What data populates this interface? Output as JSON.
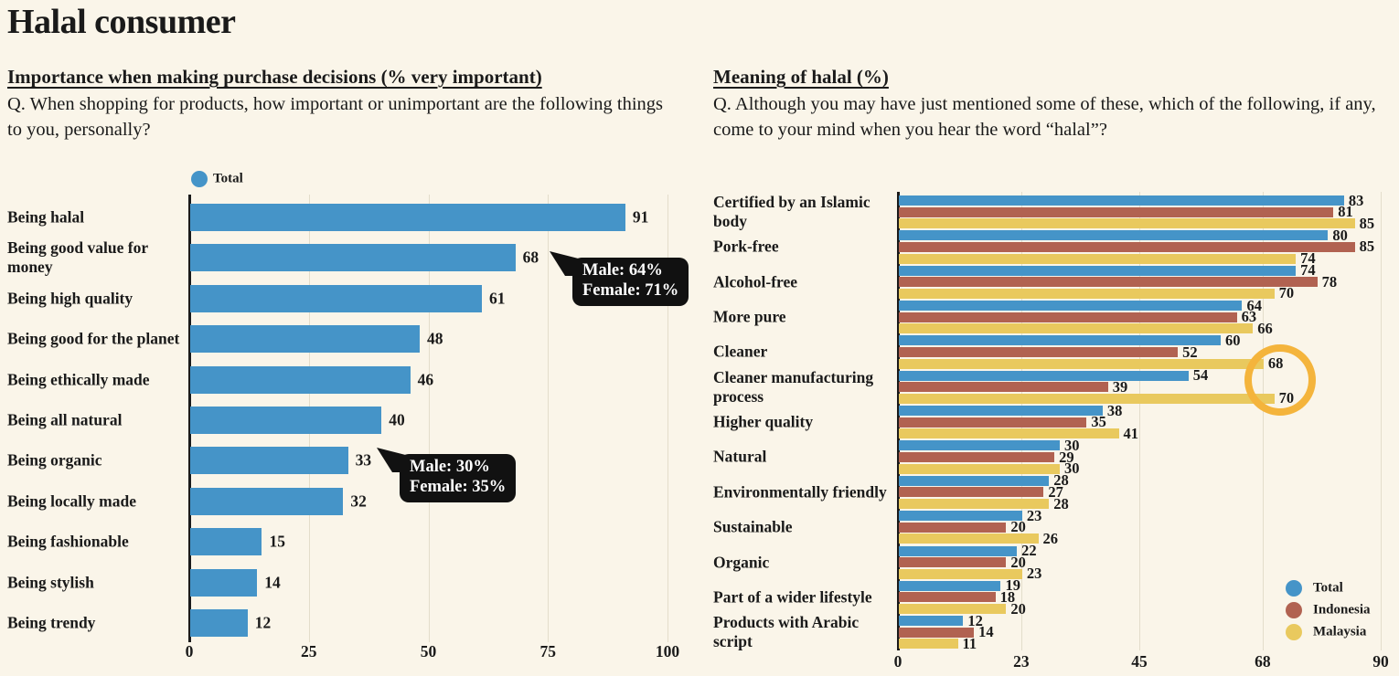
{
  "page": {
    "title": "Halal consumer"
  },
  "colors": {
    "background": "#faf5e9",
    "text": "#1a1a1a",
    "total_blue": "#4594c8",
    "indonesia_red": "#b16251",
    "malaysia_yellow": "#e9c95e",
    "gridline": "#e3ddcb",
    "axis": "#1a1a1a",
    "callout_bg": "#111111",
    "callout_text": "#ffffff",
    "highlight_circle": "#f4b43c"
  },
  "chart_data": [
    {
      "id": "importance",
      "type": "bar",
      "orientation": "horizontal",
      "title": "Importance when making purchase decisions (% very important)",
      "question": "Q. When shopping for products, how important or unimportant are the following things to you, personally?",
      "legend": [
        {
          "name": "Total",
          "color": "#4594c8"
        }
      ],
      "legend_position": "top",
      "categories": [
        "Being halal",
        "Being good value for money",
        "Being high quality",
        "Being good for the planet",
        "Being ethically made",
        "Being all natural",
        "Being organic",
        "Being locally made",
        "Being fashionable",
        "Being stylish",
        "Being trendy"
      ],
      "values": [
        91,
        68,
        61,
        48,
        46,
        40,
        33,
        32,
        15,
        14,
        12
      ],
      "xlabel": "",
      "ylabel": "",
      "xlim": [
        0,
        100
      ],
      "xticks": [
        0,
        25,
        50,
        75,
        100
      ],
      "grid": true,
      "callouts": [
        {
          "category": "Being good value for money",
          "lines": [
            "Male: 64%",
            "Female: 71%"
          ]
        },
        {
          "category": "Being organic",
          "lines": [
            "Male: 30%",
            "Female: 35%"
          ]
        }
      ]
    },
    {
      "id": "meaning",
      "type": "bar",
      "orientation": "horizontal",
      "title": "Meaning of halal (%)",
      "question": "Q. Although you may have just mentioned some of these, which of the following, if any, come to your mind when you hear the word “halal”?",
      "categories": [
        "Certified by an Islamic body",
        "Pork-free",
        "Alcohol-free",
        "More pure",
        "Cleaner",
        "Cleaner manufacturing process",
        "Higher quality",
        "Natural",
        "Environmentally friendly",
        "Sustainable",
        "Organic",
        "Part of a wider lifestyle",
        "Products with Arabic script"
      ],
      "series": [
        {
          "name": "Total",
          "color": "#4594c8",
          "values": [
            83,
            80,
            74,
            64,
            60,
            54,
            38,
            30,
            28,
            23,
            22,
            19,
            12
          ]
        },
        {
          "name": "Indonesia",
          "color": "#b16251",
          "values": [
            81,
            85,
            78,
            63,
            52,
            39,
            35,
            29,
            27,
            20,
            20,
            18,
            14
          ]
        },
        {
          "name": "Malaysia",
          "color": "#e9c95e",
          "values": [
            85,
            74,
            70,
            66,
            68,
            70,
            41,
            30,
            28,
            26,
            23,
            20,
            11
          ]
        }
      ],
      "xlabel": "",
      "ylabel": "",
      "xlim": [
        0,
        90
      ],
      "xticks": [
        0,
        23,
        45,
        68,
        90
      ],
      "grid": true,
      "legend_position": "bottom-right",
      "highlight_circle": {
        "color": "#f4b43c",
        "highlighted_values": [
          "Cleaner — Malaysia: 68",
          "Cleaner manufacturing process — Malaysia: 70"
        ]
      }
    }
  ]
}
